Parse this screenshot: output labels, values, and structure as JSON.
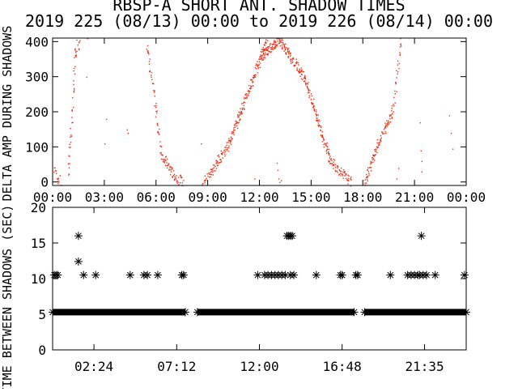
{
  "figure": {
    "title_line1": "RBSP-A SHORT ANT. SHADOW TIMES",
    "title_line2": "2019 225 (08/13) 00:00 to 2019 226 (08/14) 00:00"
  },
  "chart_data": [
    {
      "type": "scatter",
      "title": "",
      "ylabel": "DELTA AMP DURING SHADOWS",
      "xlim": [
        0,
        24
      ],
      "ylim": [
        -10,
        410
      ],
      "yticks": [
        "0",
        "100",
        "200",
        "300",
        "400"
      ],
      "xticks": [
        "00:00",
        "03:00",
        "06:00",
        "09:00",
        "12:00",
        "15:00",
        "18:00",
        "21:00",
        "00:00"
      ],
      "point_color": "#e8351b",
      "series": [
        {
          "segments": [
            {
              "x0": 0.08,
              "x1": 0.4,
              "y0": 40,
              "y1": 0,
              "pts": 14
            },
            {
              "x0": 0.9,
              "x1": 1.35,
              "y0": 20,
              "y1": 400,
              "pts": 40
            },
            {
              "x0": 1.3,
              "x1": 1.6,
              "y0": 360,
              "y1": 410,
              "pts": 10
            },
            {
              "x0": 5.45,
              "x1": 6.3,
              "y0": 400,
              "y1": 80,
              "pts": 50
            },
            {
              "x0": 6.3,
              "x1": 7.0,
              "y0": 80,
              "y1": 20,
              "pts": 40
            },
            {
              "x0": 7.0,
              "x1": 7.55,
              "y0": 20,
              "y1": 0,
              "pts": 24
            },
            {
              "x0": 8.7,
              "x1": 9.2,
              "y0": 0,
              "y1": 30,
              "pts": 20
            },
            {
              "x0": 9.2,
              "x1": 10.2,
              "y0": 30,
              "y1": 110,
              "pts": 60
            },
            {
              "x0": 10.2,
              "x1": 12.4,
              "y0": 110,
              "y1": 400,
              "pts": 160
            },
            {
              "x0": 12.1,
              "x1": 13.2,
              "y0": 360,
              "y1": 410,
              "pts": 90
            },
            {
              "x0": 13.2,
              "x1": 14.6,
              "y0": 400,
              "y1": 300,
              "pts": 100
            },
            {
              "x0": 14.6,
              "x1": 16.1,
              "y0": 300,
              "y1": 60,
              "pts": 110
            },
            {
              "x0": 16.1,
              "x1": 17.3,
              "y0": 60,
              "y1": 0,
              "pts": 60
            },
            {
              "x0": 18.1,
              "x1": 18.7,
              "y0": 0,
              "y1": 90,
              "pts": 40
            },
            {
              "x0": 18.7,
              "x1": 19.7,
              "y0": 90,
              "y1": 200,
              "pts": 60
            },
            {
              "x0": 19.7,
              "x1": 20.2,
              "y0": 200,
              "y1": 410,
              "pts": 30
            }
          ],
          "isolated": [
            [
              3.1,
              180
            ],
            [
              4.3,
              150
            ],
            [
              4.35,
              140
            ],
            [
              8.6,
              110
            ],
            [
              13.0,
              55
            ],
            [
              13.05,
              35
            ],
            [
              13.1,
              10
            ],
            [
              13.15,
              0
            ],
            [
              13.25,
              5
            ],
            [
              21.3,
              170
            ],
            [
              21.35,
              90
            ],
            [
              21.4,
              60
            ],
            [
              21.4,
              30
            ],
            [
              23.0,
              190
            ],
            [
              23.1,
              140
            ],
            [
              23.2,
              95
            ],
            [
              11.7,
              10
            ],
            [
              3.0,
              110
            ],
            [
              1.95,
              300
            ],
            [
              2.0,
              410
            ],
            [
              19.95,
              10
            ],
            [
              20.05,
              40
            ]
          ]
        }
      ]
    },
    {
      "type": "scatter",
      "title": "",
      "ylabel": "TIME BETWEEN SHADOWS (SEC)",
      "xlim": [
        0,
        24
      ],
      "ylim": [
        0,
        20
      ],
      "yticks": [
        "0",
        "5",
        "10",
        "15",
        "20"
      ],
      "xticks": [
        "02:24",
        "07:12",
        "12:00",
        "16:48",
        "21:35"
      ],
      "marker": "asterisk",
      "series": [
        {
          "baseline_y": 5.3,
          "baseline_ranges": [
            [
              0,
              7.7
            ],
            [
              8.4,
              17.5
            ],
            [
              18.1,
              24
            ]
          ],
          "points": [
            [
              0.1,
              10.5
            ],
            [
              0.2,
              10.5
            ],
            [
              0.3,
              10.5
            ],
            [
              1.5,
              16.0
            ],
            [
              1.5,
              12.4
            ],
            [
              1.8,
              10.5
            ],
            [
              2.5,
              10.5
            ],
            [
              4.5,
              10.5
            ],
            [
              5.3,
              10.5
            ],
            [
              5.5,
              10.5
            ],
            [
              6.1,
              10.5
            ],
            [
              7.5,
              10.5
            ],
            [
              7.6,
              10.5
            ],
            [
              11.9,
              10.5
            ],
            [
              12.3,
              10.5
            ],
            [
              12.5,
              10.5
            ],
            [
              12.7,
              10.5
            ],
            [
              12.9,
              10.5
            ],
            [
              13.1,
              10.5
            ],
            [
              13.3,
              10.5
            ],
            [
              13.5,
              10.5
            ],
            [
              13.6,
              16.0
            ],
            [
              13.7,
              16.0
            ],
            [
              13.8,
              16.0
            ],
            [
              13.9,
              16.0
            ],
            [
              13.8,
              10.5
            ],
            [
              14.0,
              10.5
            ],
            [
              15.3,
              10.5
            ],
            [
              16.7,
              10.5
            ],
            [
              16.8,
              10.5
            ],
            [
              17.6,
              10.5
            ],
            [
              17.7,
              10.5
            ],
            [
              19.6,
              10.5
            ],
            [
              20.6,
              10.5
            ],
            [
              20.8,
              10.5
            ],
            [
              21.0,
              10.5
            ],
            [
              21.2,
              10.5
            ],
            [
              21.3,
              10.5
            ],
            [
              21.4,
              16.0
            ],
            [
              21.5,
              10.5
            ],
            [
              21.7,
              10.5
            ],
            [
              22.2,
              10.5
            ],
            [
              23.9,
              10.5
            ]
          ]
        }
      ]
    }
  ]
}
